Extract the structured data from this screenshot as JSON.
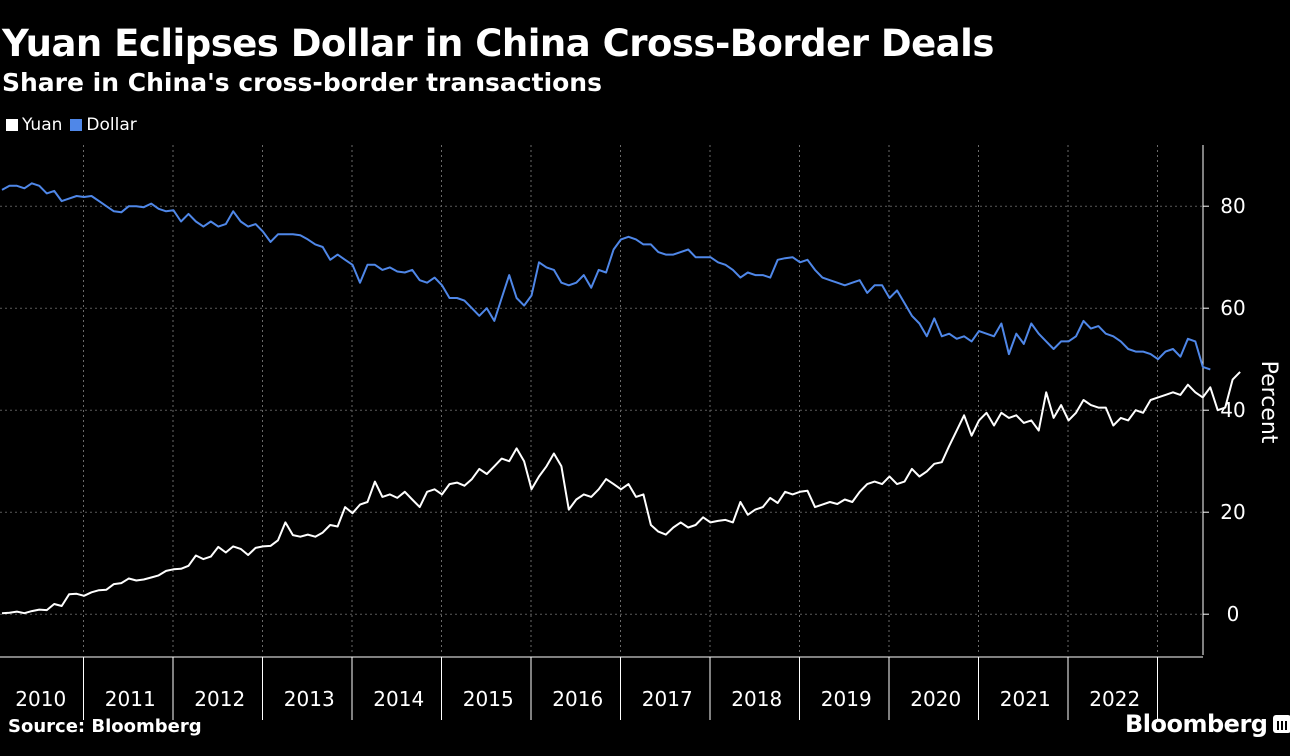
{
  "chart_data": {
    "type": "line",
    "title": "Yuan Eclipses Dollar in China Cross-Border Deals",
    "subtitle": "Share in China's cross-border transactions",
    "ylabel": "Percent",
    "xlabel": "",
    "ylim": [
      -8,
      92
    ],
    "yticks": [
      0,
      20,
      40,
      60,
      80
    ],
    "xticks": [
      "2010",
      "2011",
      "2012",
      "2013",
      "2014",
      "2015",
      "2016",
      "2017",
      "2018",
      "2019",
      "2020",
      "2021",
      "2022"
    ],
    "x_start": "2010-01",
    "x_end": "2023-03",
    "grid": true,
    "legend_position": "top-left",
    "series": [
      {
        "name": "Yuan",
        "color": "#ffffff",
        "frequency": "monthly",
        "start": "2010-01",
        "values": [
          0.2,
          0.3,
          0.5,
          0.2,
          0.6,
          0.9,
          0.8,
          2.0,
          1.6,
          3.9,
          4.0,
          3.6,
          4.3,
          4.7,
          4.8,
          5.9,
          6.1,
          7.0,
          6.6,
          6.8,
          7.2,
          7.6,
          8.5,
          8.8,
          8.9,
          9.5,
          11.5,
          10.8,
          11.3,
          13.2,
          12.1,
          13.3,
          12.8,
          11.6,
          13.0,
          13.3,
          13.4,
          14.5,
          18.0,
          15.5,
          15.2,
          15.6,
          15.2,
          16.0,
          17.5,
          17.2,
          21.0,
          19.8,
          21.5,
          22.0,
          26.0,
          23.0,
          23.5,
          22.8,
          24.0,
          22.5,
          21.0,
          24.0,
          24.5,
          23.5,
          25.5,
          25.8,
          25.2,
          26.5,
          28.5,
          27.5,
          29.0,
          30.5,
          30.0,
          32.5,
          30.0,
          24.5,
          27.0,
          29.0,
          31.5,
          29.0,
          20.5,
          22.5,
          23.5,
          23.0,
          24.5,
          26.5,
          25.5,
          24.5,
          25.5,
          23.0,
          23.5,
          17.5,
          16.2,
          15.6,
          17.0,
          18.0,
          17.0,
          17.5,
          19.0,
          18.0,
          18.3,
          18.5,
          18.0,
          22.0,
          19.5,
          20.5,
          21.0,
          22.8,
          21.8,
          24.0,
          23.5,
          24.0,
          24.2,
          21.0,
          21.5,
          22.0,
          21.6,
          22.5,
          22.0,
          24.0,
          25.5,
          26.0,
          25.5,
          27.0,
          25.5,
          26.0,
          28.5,
          27.0,
          28.0,
          29.5,
          29.8,
          33.0,
          36.0,
          39.0,
          35.0,
          38.0,
          39.5,
          37.0,
          39.5,
          38.5,
          39.0,
          37.5,
          38.0,
          36.0,
          43.5,
          38.5,
          41.0,
          38.0,
          39.5,
          42.0,
          41.0,
          40.5,
          40.5,
          37.0,
          38.5,
          38.0,
          40.0,
          39.5,
          42.0,
          42.5,
          43.0,
          43.5,
          43.0,
          45.0,
          43.5,
          42.5,
          44.5,
          40.0,
          40.5,
          46.0,
          47.5
        ]
      },
      {
        "name": "Dollar",
        "color": "#4f87e8",
        "frequency": "monthly",
        "start": "2010-01",
        "values": [
          83.2,
          84.0,
          84.0,
          83.5,
          84.5,
          84.0,
          82.5,
          83.0,
          81.0,
          81.5,
          82.0,
          81.8,
          82.0,
          81.0,
          80.0,
          79.0,
          78.8,
          80.0,
          80.0,
          79.8,
          80.5,
          79.5,
          79.0,
          79.2,
          77.0,
          78.5,
          77.0,
          76.0,
          77.0,
          76.0,
          76.5,
          79.0,
          77.0,
          76.0,
          76.5,
          75.0,
          73.0,
          74.5,
          74.5,
          74.5,
          74.3,
          73.5,
          72.5,
          72.0,
          69.5,
          70.5,
          69.5,
          68.5,
          65.0,
          68.5,
          68.5,
          67.5,
          68.0,
          67.2,
          67.0,
          67.5,
          65.5,
          65.0,
          66.0,
          64.5,
          62.0,
          62.0,
          61.5,
          60.0,
          58.5,
          60.0,
          57.5,
          62.0,
          66.5,
          62.0,
          60.5,
          62.5,
          69.0,
          68.0,
          67.5,
          65.0,
          64.5,
          65.0,
          66.5,
          64.0,
          67.5,
          67.0,
          71.5,
          73.5,
          74.0,
          73.5,
          72.5,
          72.5,
          71.0,
          70.5,
          70.5,
          71.0,
          71.5,
          70.0,
          70.0,
          70.0,
          69.0,
          68.5,
          67.5,
          66.0,
          67.0,
          66.5,
          66.5,
          66.0,
          69.5,
          69.8,
          70.0,
          69.0,
          69.5,
          67.5,
          66.0,
          65.5,
          65.0,
          64.5,
          65.0,
          65.5,
          63.0,
          64.5,
          64.5,
          62.0,
          63.5,
          61.0,
          58.5,
          57.0,
          54.5,
          58.0,
          54.5,
          55.0,
          54.0,
          54.5,
          53.5,
          55.5,
          55.0,
          54.5,
          57.0,
          51.0,
          55.0,
          53.0,
          57.0,
          55.0,
          53.5,
          52.0,
          53.5,
          53.5,
          54.5,
          57.5,
          56.0,
          56.5,
          55.0,
          54.5,
          53.5,
          52.0,
          51.5,
          51.5,
          51.0,
          50.0,
          51.5,
          52.0,
          50.5,
          54.0,
          53.5,
          48.5,
          48.0
        ]
      }
    ]
  },
  "chrome": {
    "title": "Yuan Eclipses Dollar in China Cross-Border Deals",
    "subtitle": "Share in China's cross-border transactions",
    "legend": [
      {
        "label": "Yuan",
        "color": "#ffffff"
      },
      {
        "label": "Dollar",
        "color": "#4f87e8"
      }
    ],
    "source": "Source: Bloomberg",
    "brand": "Bloomberg",
    "y_axis_label": "Percent"
  }
}
